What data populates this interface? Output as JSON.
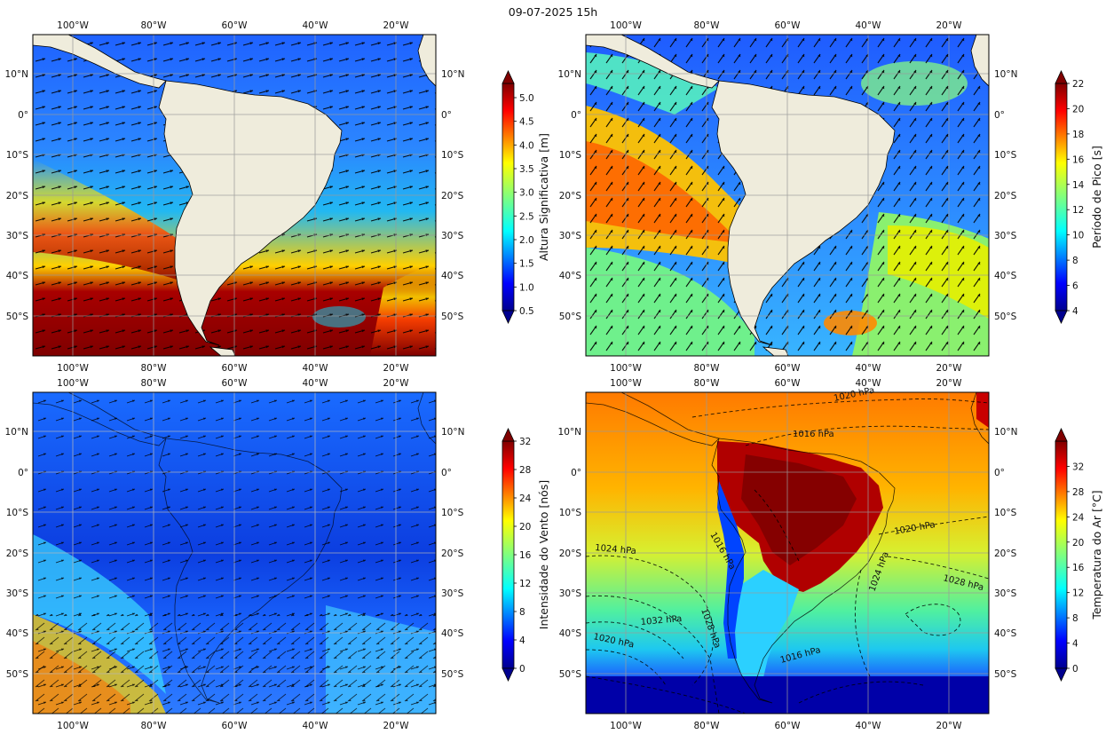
{
  "figure": {
    "title": "09-07-2025 15h"
  },
  "lon_ticks": [
    "100°W",
    "80°W",
    "60°W",
    "40°W",
    "20°W"
  ],
  "lat_ticks": [
    "10°N",
    "0°",
    "10°S",
    "20°S",
    "30°S",
    "40°S",
    "50°S"
  ],
  "panels": [
    {
      "id": "hs",
      "colorbar": {
        "label": "Altura Significativa [m]",
        "ticks": [
          "0.5",
          "1.0",
          "1.5",
          "2.0",
          "2.5",
          "3.0",
          "3.5",
          "4.0",
          "4.5",
          "5.0"
        ],
        "range": [
          0.5,
          5.3
        ]
      },
      "overlay": "wave direction arrows"
    },
    {
      "id": "tp",
      "colorbar": {
        "label": "Período de Pico [s]",
        "ticks": [
          "4",
          "6",
          "8",
          "10",
          "12",
          "14",
          "16",
          "18",
          "20",
          "22"
        ],
        "range": [
          4,
          22
        ]
      },
      "overlay": "wave direction arrows"
    },
    {
      "id": "wind",
      "colorbar": {
        "label": "Intensidade do Vento [nós]",
        "ticks": [
          "0",
          "4",
          "8",
          "12",
          "16",
          "20",
          "24",
          "28",
          "32"
        ],
        "range": [
          0,
          32
        ]
      },
      "overlay": "wind vectors"
    },
    {
      "id": "t2m",
      "colorbar": {
        "label": "Temperatura do Ar [°C]",
        "ticks": [
          "0",
          "4",
          "8",
          "12",
          "16",
          "20",
          "24",
          "28",
          "32"
        ],
        "range": [
          0,
          36
        ]
      },
      "overlay": "isobars",
      "isobar_labels": [
        "1020 hPa",
        "1016 hPa",
        "1016 hPa",
        "1024 hPa",
        "1020 hPa",
        "1028 hPa",
        "1028 hPa",
        "1024 hPa",
        "1032 hPa",
        "1020 hPa",
        "1016 hPa"
      ]
    }
  ],
  "colors": {
    "land": "#efecdc",
    "grid": "#9a9a9a"
  }
}
